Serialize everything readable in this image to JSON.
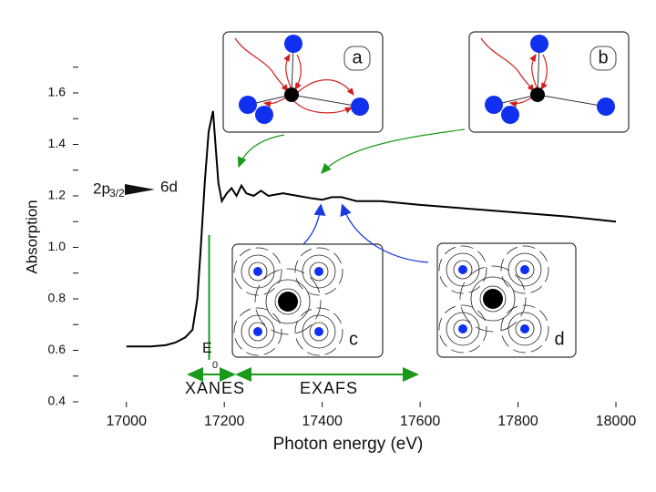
{
  "chart_data": {
    "type": "line",
    "xlabel": "Photon energy (eV)",
    "ylabel": "Absorption",
    "xlim": [
      16900,
      18000
    ],
    "ylim": [
      0.4,
      1.8
    ],
    "xticks": [
      17000,
      17200,
      17400,
      17600,
      17800,
      18000
    ],
    "yticks": [
      0.4,
      0.6,
      0.8,
      {
        "value": 1,
        "label": "1.0"
      },
      1.2,
      1.4,
      1.6
    ],
    "yticks_minor": [
      0.5,
      0.7,
      0.9,
      1.1,
      1.3,
      1.5,
      1.7
    ],
    "grid": false,
    "series": [
      {
        "name": null,
        "color": "#000000",
        "x": [
          17000,
          17050,
          17080,
          17100,
          17120,
          17135,
          17145,
          17152,
          17160,
          17168,
          17177,
          17182,
          17188,
          17195,
          17205,
          17215,
          17225,
          17235,
          17245,
          17260,
          17275,
          17290,
          17320,
          17350,
          17380,
          17400,
          17420,
          17440,
          17470,
          17520,
          17600,
          17700,
          17800,
          17900,
          18000
        ],
        "values": [
          0.615,
          0.615,
          0.62,
          0.63,
          0.65,
          0.68,
          0.8,
          1.0,
          1.25,
          1.45,
          1.53,
          1.4,
          1.25,
          1.18,
          1.21,
          1.23,
          1.2,
          1.24,
          1.21,
          1.2,
          1.22,
          1.2,
          1.21,
          1.2,
          1.19,
          1.185,
          1.195,
          1.195,
          1.18,
          1.18,
          1.165,
          1.15,
          1.135,
          1.12,
          1.1
        ]
      }
    ],
    "edge_x": 17169,
    "annotations": {
      "transition_from": "2p",
      "transition_from_sub": "3/2",
      "transition_to": "6d",
      "edge": "E",
      "edge_sub": "0",
      "xanes": "XANES",
      "exafs": "EXAFS",
      "panels": [
        "a",
        "b",
        "c",
        "d"
      ]
    }
  }
}
